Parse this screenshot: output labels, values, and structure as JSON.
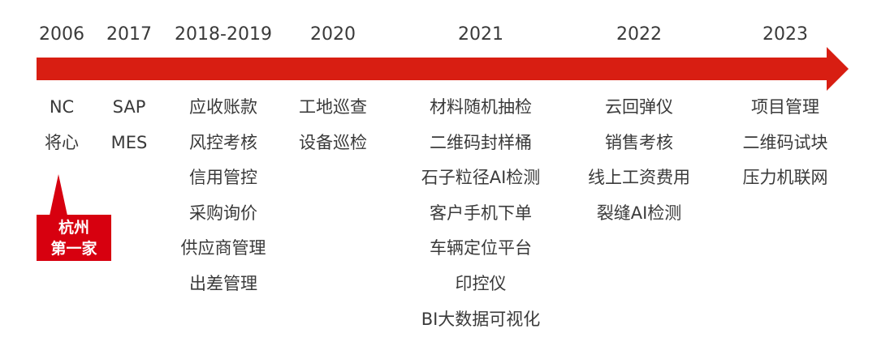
{
  "accent_color": "#d81e12",
  "timeline": [
    {
      "year": "2006",
      "items": [
        "NC",
        "将心"
      ]
    },
    {
      "year": "2017",
      "items": [
        "SAP",
        "MES"
      ]
    },
    {
      "year": "2018-2019",
      "items": [
        "应收账款",
        "风控考核",
        "信用管控",
        "采购询价",
        "供应商管理",
        "出差管理"
      ]
    },
    {
      "year": "2020",
      "items": [
        "工地巡查",
        "设备巡检"
      ]
    },
    {
      "year": "2021",
      "items": [
        "材料随机抽检",
        "二维码封样桶",
        "石子粒径AI检测",
        "客户手机下单",
        "车辆定位平台",
        "印控仪",
        "BI大数据可视化"
      ]
    },
    {
      "year": "2022",
      "items": [
        "云回弹仪",
        "销售考核",
        "线上工资费用",
        "裂缝AI检测"
      ]
    },
    {
      "year": "2023",
      "items": [
        "项目管理",
        "二维码试块",
        "压力机联网"
      ]
    }
  ],
  "callout": {
    "line1": "杭州",
    "line2": "第一家"
  }
}
